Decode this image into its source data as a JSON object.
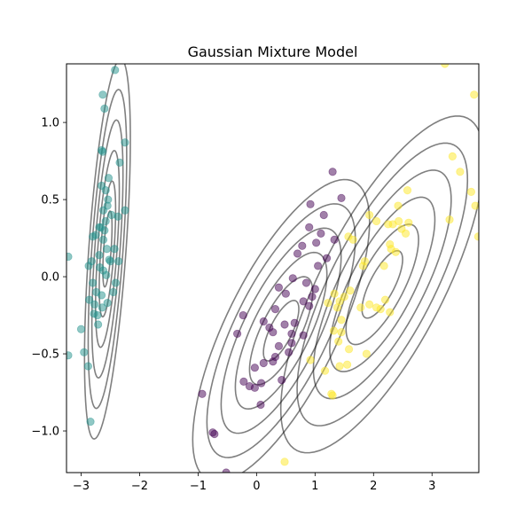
{
  "chart_data": {
    "type": "scatter",
    "title": "Gaussian Mixture Model",
    "xlabel": "",
    "ylabel": "",
    "xlim": [
      -3.25,
      3.8
    ],
    "ylim": [
      -1.27,
      1.38
    ],
    "grid": false,
    "x_ticks": [
      -3,
      -2,
      -1,
      0,
      1,
      2,
      3
    ],
    "y_ticks": [
      -1.0,
      -0.5,
      0.0,
      0.5,
      1.0
    ],
    "x_tick_labels": [
      "−3",
      "−2",
      "−1",
      "0",
      "1",
      "2",
      "3"
    ],
    "y_tick_labels": [
      "−1.0",
      "−0.5",
      "0.0",
      "0.5",
      "1.0"
    ],
    "colors": {
      "cluster_purple": "#440154",
      "cluster_teal": "#21918c",
      "cluster_yellow": "#fde725",
      "contour": "#000000"
    },
    "point_alpha": 0.5,
    "contour_alpha": 0.5,
    "series": [
      {
        "color": "#440154",
        "points": [
          [
            -0.93,
            -0.76
          ],
          [
            -0.75,
            -1.01
          ],
          [
            -0.72,
            -1.02
          ],
          [
            -0.52,
            -1.27
          ],
          [
            -0.33,
            -0.37
          ],
          [
            -0.23,
            -0.25
          ],
          [
            -0.22,
            -0.68
          ],
          [
            -0.12,
            -0.71
          ],
          [
            -0.03,
            -0.72
          ],
          [
            -0.03,
            -0.59
          ],
          [
            0.07,
            -0.83
          ],
          [
            0.08,
            -0.69
          ],
          [
            0.12,
            -0.56
          ],
          [
            0.12,
            -0.29
          ],
          [
            0.22,
            -0.33
          ],
          [
            0.28,
            -0.36
          ],
          [
            0.28,
            -0.55
          ],
          [
            0.32,
            -0.52
          ],
          [
            0.32,
            -0.21
          ],
          [
            0.38,
            -0.45
          ],
          [
            0.38,
            -0.07
          ],
          [
            0.43,
            -0.67
          ],
          [
            0.48,
            -0.31
          ],
          [
            0.5,
            -0.11
          ],
          [
            0.55,
            -0.49
          ],
          [
            0.6,
            -0.43
          ],
          [
            0.6,
            -0.37
          ],
          [
            0.62,
            -0.01
          ],
          [
            0.65,
            -0.3
          ],
          [
            0.7,
            0.15
          ],
          [
            0.78,
            0.2
          ],
          [
            0.8,
            -0.38
          ],
          [
            0.8,
            -0.16
          ],
          [
            0.85,
            -0.04
          ],
          [
            0.9,
            0.32
          ],
          [
            0.9,
            -0.19
          ],
          [
            0.92,
            0.47
          ],
          [
            0.95,
            -0.13
          ],
          [
            1.0,
            -0.08
          ],
          [
            1.02,
            0.22
          ],
          [
            1.05,
            0.07
          ],
          [
            1.1,
            0.28
          ],
          [
            1.15,
            0.4
          ],
          [
            1.2,
            0.12
          ],
          [
            1.3,
            0.68
          ],
          [
            1.33,
            0.24
          ],
          [
            1.45,
            0.51
          ]
        ]
      },
      {
        "color": "#21918c",
        "points": [
          [
            -3.22,
            0.13
          ],
          [
            -3.22,
            -0.51
          ],
          [
            -3.0,
            -0.34
          ],
          [
            -2.95,
            -0.49
          ],
          [
            -2.88,
            -0.58
          ],
          [
            -2.87,
            0.07
          ],
          [
            -2.86,
            -0.15
          ],
          [
            -2.84,
            -0.94
          ],
          [
            -2.82,
            0.1
          ],
          [
            -2.8,
            -0.04
          ],
          [
            -2.8,
            0.26
          ],
          [
            -2.78,
            -0.24
          ],
          [
            -2.77,
            -0.18
          ],
          [
            -2.75,
            0.27
          ],
          [
            -2.74,
            -0.1
          ],
          [
            -2.72,
            -0.25
          ],
          [
            -2.71,
            -0.31
          ],
          [
            -2.69,
            0.32
          ],
          [
            -2.69,
            0.14
          ],
          [
            -2.68,
            0.06
          ],
          [
            -2.66,
            0.32
          ],
          [
            -2.65,
            -0.12
          ],
          [
            -2.65,
            0.59
          ],
          [
            -2.65,
            0.82
          ],
          [
            -2.64,
            -0.2
          ],
          [
            -2.63,
            1.18
          ],
          [
            -2.63,
            0.81
          ],
          [
            -2.62,
            0.43
          ],
          [
            -2.62,
            0.24
          ],
          [
            -2.62,
            0.04
          ],
          [
            -2.6,
            1.09
          ],
          [
            -2.6,
            0.3
          ],
          [
            -2.58,
            0.56
          ],
          [
            -2.58,
            0.36
          ],
          [
            -2.57,
            0.01
          ],
          [
            -2.56,
            0.18
          ],
          [
            -2.55,
            -0.17
          ],
          [
            -2.55,
            0.46
          ],
          [
            -2.54,
            0.5
          ],
          [
            -2.53,
            0.64
          ],
          [
            -2.52,
            0.11
          ],
          [
            -2.5,
            0.1
          ],
          [
            -2.48,
            0.4
          ],
          [
            -2.45,
            -0.1
          ],
          [
            -2.43,
            0.18
          ],
          [
            -2.42,
            1.34
          ],
          [
            -2.41,
            -0.04
          ],
          [
            -2.37,
            0.39
          ],
          [
            -2.36,
            0.1
          ],
          [
            -2.34,
            0.74
          ],
          [
            -2.25,
            0.87
          ],
          [
            -2.25,
            0.43
          ]
        ]
      },
      {
        "color": "#fde725",
        "points": [
          [
            0.48,
            -1.2
          ],
          [
            0.92,
            -0.54
          ],
          [
            1.17,
            -0.61
          ],
          [
            1.22,
            -0.17
          ],
          [
            1.28,
            -0.76
          ],
          [
            1.3,
            -0.77
          ],
          [
            1.32,
            -0.35
          ],
          [
            1.33,
            -0.11
          ],
          [
            1.38,
            -0.2
          ],
          [
            1.4,
            -0.42
          ],
          [
            1.42,
            -0.16
          ],
          [
            1.42,
            -0.58
          ],
          [
            1.45,
            -0.28
          ],
          [
            1.45,
            -0.36
          ],
          [
            1.5,
            -0.13
          ],
          [
            1.55,
            -0.57
          ],
          [
            1.57,
            0.26
          ],
          [
            1.58,
            -0.47
          ],
          [
            1.6,
            -0.09
          ],
          [
            1.65,
            0.24
          ],
          [
            1.78,
            -0.2
          ],
          [
            1.82,
            0.07
          ],
          [
            1.85,
            0.1
          ],
          [
            1.88,
            -0.5
          ],
          [
            1.93,
            -0.18
          ],
          [
            1.93,
            0.4
          ],
          [
            2.05,
            0.36
          ],
          [
            2.05,
            -0.2
          ],
          [
            2.12,
            -0.21
          ],
          [
            2.18,
            0.07
          ],
          [
            2.2,
            -0.15
          ],
          [
            2.25,
            0.34
          ],
          [
            2.28,
            0.21
          ],
          [
            2.28,
            -0.23
          ],
          [
            2.3,
            0.18
          ],
          [
            2.33,
            0.34
          ],
          [
            2.38,
            0.16
          ],
          [
            2.42,
            0.46
          ],
          [
            2.43,
            0.36
          ],
          [
            2.48,
            0.31
          ],
          [
            2.55,
            0.28
          ],
          [
            2.58,
            0.56
          ],
          [
            2.6,
            0.35
          ],
          [
            3.22,
            1.38
          ],
          [
            3.3,
            0.37
          ],
          [
            3.35,
            0.78
          ],
          [
            3.48,
            0.68
          ],
          [
            3.67,
            0.55
          ],
          [
            3.72,
            1.18
          ],
          [
            3.74,
            0.46
          ],
          [
            3.79,
            0.26
          ]
        ]
      }
    ],
    "contours": [
      {
        "center": [
          -2.55,
          0.18
        ],
        "sx": 0.14,
        "sy": 0.44,
        "rho": 0.58
      },
      {
        "center": [
          0.42,
          -0.35
        ],
        "sx": 0.54,
        "sy": 0.35,
        "rho": 0.72
      },
      {
        "center": [
          2.15,
          -0.05
        ],
        "sx": 0.62,
        "sy": 0.39,
        "rho": 0.74
      }
    ],
    "contour_levels": [
      0.56,
      1.0,
      1.45,
      1.9,
      2.35,
      2.8
    ]
  }
}
